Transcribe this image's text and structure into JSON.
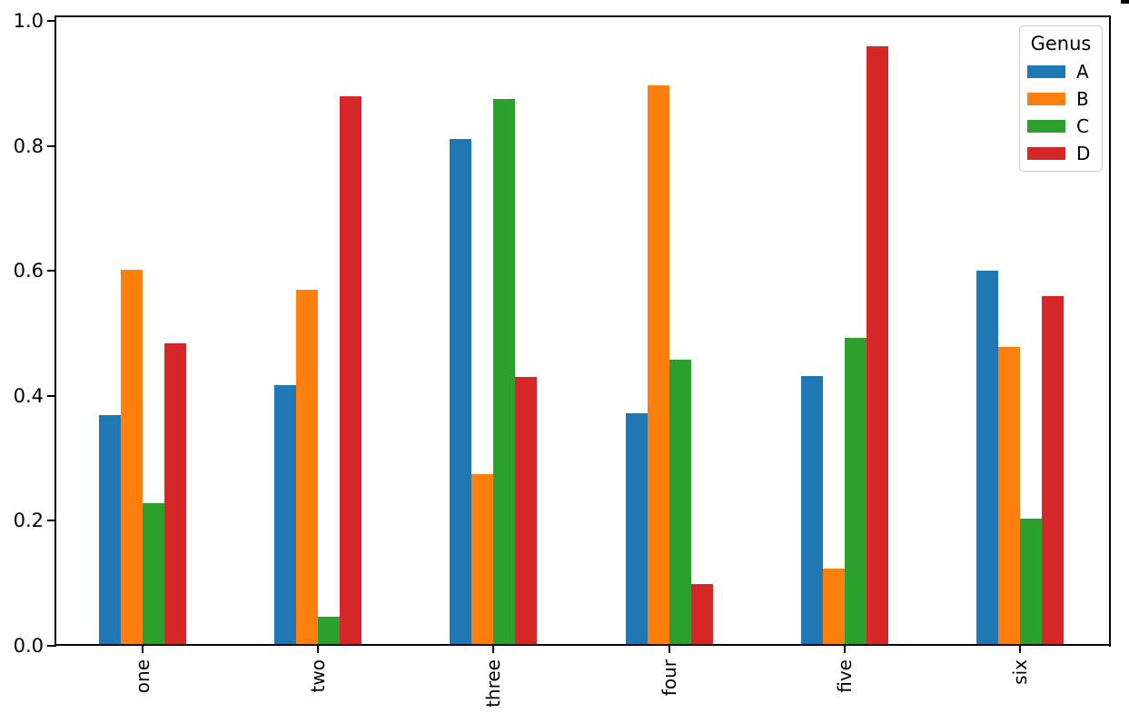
{
  "chart_data": {
    "type": "bar",
    "title": "",
    "xlabel": "",
    "ylabel": "",
    "categories": [
      "one",
      "two",
      "three",
      "four",
      "five",
      "six"
    ],
    "series": [
      {
        "name": "A",
        "color": "#1f77b4",
        "values": [
          0.37,
          0.418,
          0.812,
          0.372,
          0.432,
          0.6
        ]
      },
      {
        "name": "B",
        "color": "#ff7f0e",
        "values": [
          0.602,
          0.57,
          0.275,
          0.898,
          0.123,
          0.478
        ]
      },
      {
        "name": "C",
        "color": "#2ca02c",
        "values": [
          0.228,
          0.047,
          0.876,
          0.458,
          0.493,
          0.203
        ]
      },
      {
        "name": "D",
        "color": "#d62728",
        "values": [
          0.485,
          0.88,
          0.43,
          0.099,
          0.96,
          0.56
        ]
      }
    ],
    "legend": {
      "title": "Genus",
      "position": "upper right"
    },
    "y_axis": {
      "min": 0.0,
      "max": 1.0,
      "tick_labels": [
        "0.0",
        "0.2",
        "0.4",
        "0.6",
        "0.8",
        "1.0"
      ],
      "grid": false
    },
    "x_axis": {
      "tick_label_rotation": 90
    },
    "axis_color": "#000000",
    "background_color": "#ffffff"
  }
}
